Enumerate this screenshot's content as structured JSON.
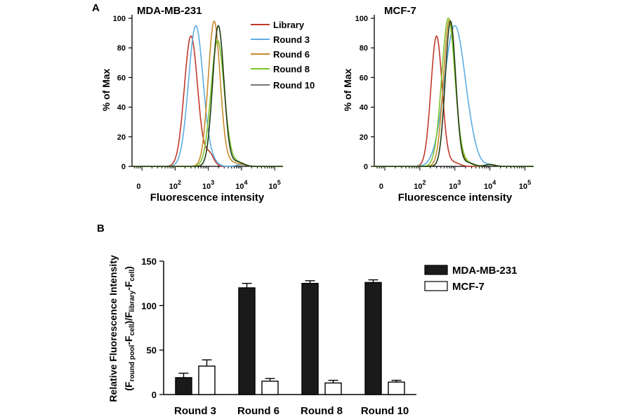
{
  "chart_data": [
    {
      "type": "line",
      "panel_label": "A",
      "title": "MDA-MB-231",
      "xlabel": "Fluorescence intensity",
      "ylabel": "% of Max",
      "x_scale": "log",
      "xlim": [
        0,
        100000
      ],
      "ylim": [
        0,
        100
      ],
      "y_ticks": [
        "0",
        "20",
        "40",
        "60",
        "80",
        "100"
      ],
      "x_ticks": [
        {
          "label": "0",
          "exp": ""
        },
        {
          "label": "10",
          "exp": "2"
        },
        {
          "label": "10",
          "exp": "3"
        },
        {
          "label": "10",
          "exp": "4"
        },
        {
          "label": "10",
          "exp": "5"
        }
      ],
      "legend": [
        "Library",
        "Round 3",
        "Round 6",
        "Round 8",
        "Round 10"
      ],
      "series": [
        {
          "name": "Library",
          "color": "#c0392b",
          "peak_x": 300,
          "peak_y": 88,
          "width": 0.2
        },
        {
          "name": "Round 3",
          "color": "#5dade2",
          "peak_x": 420,
          "peak_y": 95,
          "width": 0.22
        },
        {
          "name": "Round 6",
          "color": "#c8892b",
          "peak_x": 1500,
          "peak_y": 98,
          "width": 0.18
        },
        {
          "name": "Round 8",
          "color": "#7dc42a",
          "peak_x": 1900,
          "peak_y": 85,
          "width": 0.2
        },
        {
          "name": "Round 10",
          "color": "#1f3b12",
          "peak_x": 2000,
          "peak_y": 95,
          "width": 0.17
        }
      ]
    },
    {
      "type": "line",
      "title": "MCF-7",
      "xlabel": "Fluorescence intensity",
      "ylabel": "% of Max",
      "x_scale": "log",
      "xlim": [
        0,
        100000
      ],
      "ylim": [
        0,
        100
      ],
      "y_ticks": [
        "0",
        "20",
        "40",
        "60",
        "80",
        "100"
      ],
      "x_ticks": [
        {
          "label": "0",
          "exp": ""
        },
        {
          "label": "10",
          "exp": "2"
        },
        {
          "label": "10",
          "exp": "3"
        },
        {
          "label": "10",
          "exp": "4"
        },
        {
          "label": "10",
          "exp": "5"
        }
      ],
      "series": [
        {
          "name": "Library",
          "color": "#c0392b",
          "peak_x": 300,
          "peak_y": 88,
          "width": 0.16
        },
        {
          "name": "Round 3",
          "color": "#5dade2",
          "peak_x": 1000,
          "peak_y": 95,
          "width": 0.3
        },
        {
          "name": "Round 6",
          "color": "#c8892b",
          "peak_x": 700,
          "peak_y": 99,
          "width": 0.17
        },
        {
          "name": "Round 8",
          "color": "#7dc42a",
          "peak_x": 650,
          "peak_y": 100,
          "width": 0.19
        },
        {
          "name": "Round 10",
          "color": "#1f3b12",
          "peak_x": 750,
          "peak_y": 98,
          "width": 0.15
        }
      ]
    },
    {
      "type": "bar",
      "panel_label": "B",
      "ylabel_line1": "Relative Fluorescence Intensity",
      "ylabel_line2": {
        "p1": "(F",
        "s1": "round pool",
        "p2": "-F",
        "s2": "cell",
        "p3": ")/F",
        "s3": "library",
        "p4": "-F",
        "s4": "cell",
        "p5": ")"
      },
      "categories": [
        "Round 3",
        "Round 6",
        "Round 8",
        "Round 10"
      ],
      "ylim": [
        0,
        150
      ],
      "y_ticks": [
        "0",
        "50",
        "100",
        "150"
      ],
      "series": [
        {
          "name": "MDA-MB-231",
          "color": "#1a1a1a",
          "values": [
            19,
            120,
            125,
            126
          ],
          "errors": [
            5,
            5,
            3,
            3
          ]
        },
        {
          "name": "MCF-7",
          "color": "#ffffff",
          "values": [
            32,
            15,
            13,
            14
          ],
          "errors": [
            7,
            3,
            3,
            2
          ]
        }
      ]
    }
  ]
}
